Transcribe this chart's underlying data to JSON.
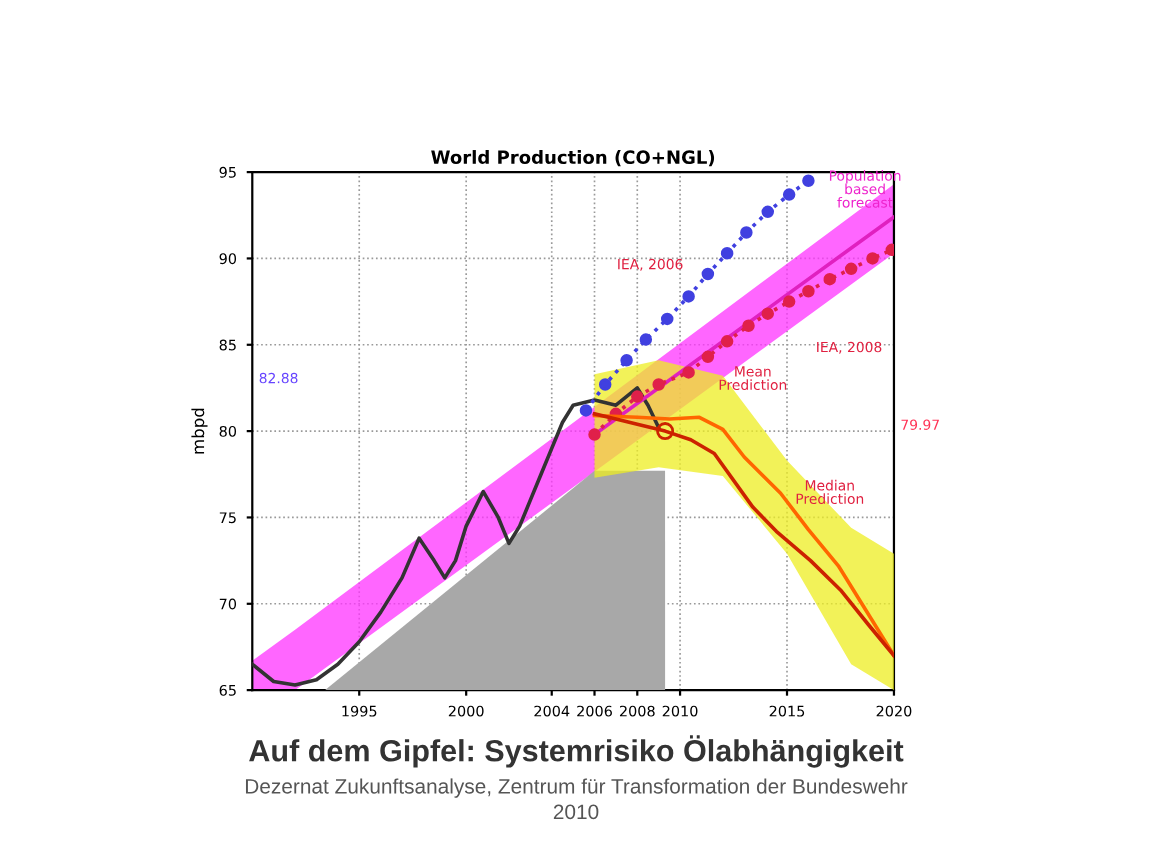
{
  "chart_data": {
    "type": "line",
    "title": "World Production (CO+NGL)",
    "ylabel": "mbpd",
    "xlim": [
      1990,
      2020
    ],
    "ylim": [
      65,
      95
    ],
    "xticks": [
      1995,
      2000,
      2004,
      2006,
      2008,
      2010,
      2015,
      2020
    ],
    "yticks": [
      65,
      70,
      75,
      80,
      85,
      90,
      95
    ],
    "grid": true,
    "legend": false,
    "series": [
      {
        "type": "area",
        "color": "#ff33ff",
        "x": [
          1990,
          1992,
          2020
        ],
        "lower": [
          65,
          65,
          90.3
        ],
        "upper": [
          66.7,
          68.5,
          94.3
        ],
        "values": [
          null,
          null,
          null
        ]
      },
      {
        "type": "area",
        "color": "#a8a8a8",
        "x": [
          1993.4,
          2006,
          2009.3,
          2009.3
        ],
        "values": [
          65,
          77.7,
          77.7,
          65
        ]
      },
      {
        "type": "area",
        "color": "#eeee22",
        "x": [
          2006,
          2009,
          2012,
          2015,
          2018,
          2020
        ],
        "lower": [
          77.3,
          77.9,
          77.4,
          72.9,
          66.5,
          65
        ],
        "upper": [
          83.3,
          84.1,
          83.2,
          78.3,
          74.4,
          72.9
        ],
        "values": [
          null,
          null,
          null,
          null,
          null,
          null
        ]
      },
      {
        "color": "#333333",
        "x": [
          1990,
          1991,
          1992,
          1993,
          1994,
          1995,
          1996,
          1997,
          1997.8,
          1998.5,
          1999,
          1999.5,
          2000,
          2000.8,
          2001.5,
          2002,
          2002.5,
          2003,
          2003.5,
          2004,
          2004.5,
          2005,
          2006,
          2007,
          2008,
          2008.5,
          2009
        ],
        "values": [
          66.5,
          65.5,
          65.3,
          65.6,
          66.5,
          67.8,
          69.5,
          71.5,
          73.8,
          72.5,
          71.5,
          72.5,
          74.5,
          76.5,
          75,
          73.5,
          74.5,
          76,
          77.5,
          79,
          80.5,
          81.5,
          81.8,
          81.5,
          82.5,
          81.5,
          80.2
        ]
      },
      {
        "color": "#e020c0",
        "x": [
          2006,
          2020
        ],
        "values": [
          79.8,
          92.4
        ]
      },
      {
        "color": "#4040e0",
        "line_style": "dotted",
        "marker": "circle",
        "x": [
          2005.6,
          2006.5,
          2007.5,
          2008.4,
          2009.4,
          2010.4,
          2011.3,
          2012.2,
          2013.1,
          2014.1,
          2015.1,
          2016
        ],
        "values": [
          81.2,
          82.7,
          84.1,
          85.3,
          86.5,
          87.8,
          89.1,
          90.3,
          91.5,
          92.7,
          93.7,
          94.5
        ]
      },
      {
        "color": "#e0204a",
        "line_style": "dotted",
        "marker": "circle",
        "x": [
          2006,
          2007,
          2008,
          2009,
          2010.4,
          2011.3,
          2012.2,
          2013.2,
          2014.1,
          2015.1,
          2016,
          2017,
          2018,
          2019,
          2019.9
        ],
        "values": [
          79.8,
          81,
          82,
          82.7,
          83.4,
          84.3,
          85.2,
          86.1,
          86.8,
          87.5,
          88.1,
          88.8,
          89.4,
          90,
          90.5
        ]
      },
      {
        "color": "#ff6600",
        "x": [
          2006,
          2008,
          2009.5,
          2010.9,
          2012,
          2013,
          2014.7,
          2016,
          2017.4,
          2018.5,
          2020
        ],
        "values": [
          80.9,
          80.8,
          80.7,
          80.8,
          80.1,
          78.5,
          76.4,
          74.3,
          72.2,
          70,
          67
        ]
      },
      {
        "color": "#cc2200",
        "x": [
          2006,
          2007,
          2008,
          2009.3,
          2010.5,
          2011.6,
          2013.4,
          2014.5,
          2016.1,
          2017.5,
          2018.8,
          2020
        ],
        "values": [
          81,
          80.7,
          80.4,
          80,
          79.5,
          78.7,
          75.6,
          74.2,
          72.5,
          70.8,
          68.8,
          67
        ]
      },
      {
        "type": "scatter",
        "color": "#cc2200",
        "x": [
          2009.3
        ],
        "values": [
          80.0
        ]
      }
    ],
    "annotations": [
      "82.88",
      "79.97",
      "Population based forecast",
      "IEA, 2006",
      "IEA, 2008",
      "Mean Prediction",
      "Median Prediction",
      "Auf dem Gipfel: Systemrisiko Ölabhängigkeit",
      "Dezernat Zukunftsanalyse, Zentrum für Transformation der Bundeswehr",
      "2010"
    ]
  }
}
